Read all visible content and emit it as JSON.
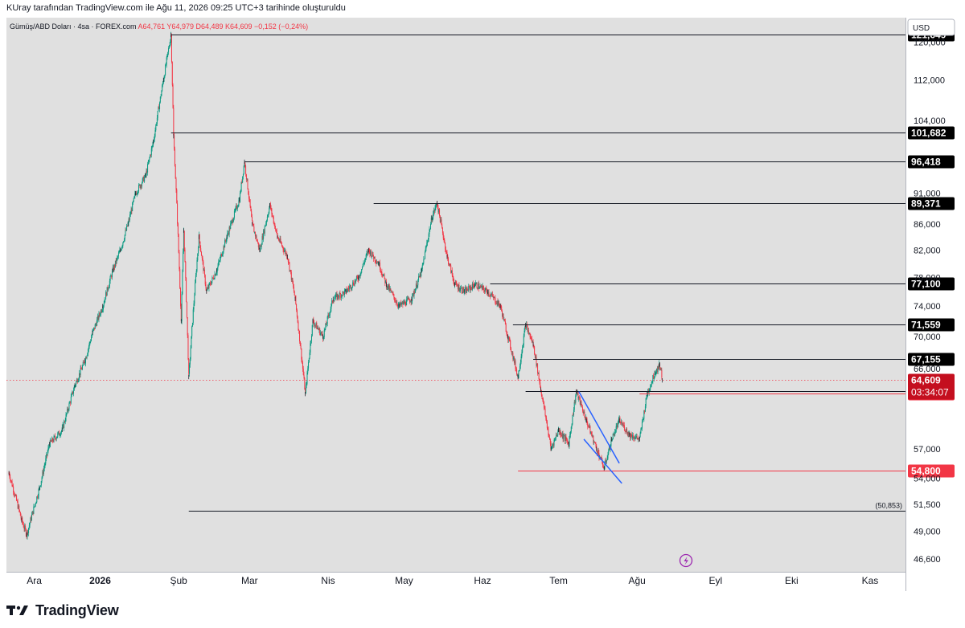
{
  "header": {
    "attribution": "KUray tarafından TradingView.com ile Ağu 11, 2026 09:25 UTC+3 tarihinde oluşturuldu"
  },
  "legend": {
    "symbol": "Gümüş/ABD Doları · 4sa · FOREX.com",
    "open": "A64,761",
    "high": "Y64,979",
    "low": "D64,489",
    "close": "K64,609",
    "change": "−0,152 (−0,24%)"
  },
  "currency_badge": "USD",
  "alert_icon": "lightning-icon",
  "footer": {
    "brand": "TradingView",
    "logo_icon": "tradingview-logo-icon"
  },
  "colors": {
    "background": "#e0e0e0",
    "bullish": "#089981",
    "bearish": "#f23645",
    "level_line": "#131722",
    "support_line": "#f23645",
    "channel_line": "#2962ff",
    "price_label_bg": "#f23645"
  },
  "chart_data": {
    "type": "candlestick",
    "title": "Gümüş/ABD Doları · 4sa · FOREX.com",
    "ylim": [
      45.5,
      125.5
    ],
    "y_scale": "log",
    "grid": false,
    "x_tick_labels": [
      "Ara",
      "2026",
      "Şub",
      "Mar",
      "Nis",
      "May",
      "Haz",
      "Tem",
      "Ağu",
      "Eyl",
      "Eki",
      "Kas"
    ],
    "y_tick_labels": [
      "120,000",
      "112,000",
      "104,000",
      "91,000",
      "86,000",
      "82,000",
      "78,000",
      "74,000",
      "70,000",
      "66,000",
      "57,000",
      "54,000",
      "51,500",
      "49,000",
      "46,600"
    ],
    "y_tick_values": [
      120,
      112,
      104,
      91,
      86,
      82,
      78,
      74,
      70,
      66,
      57,
      54,
      51.5,
      49,
      46.6
    ],
    "price_path": [
      {
        "date": "2025-11-26",
        "price": 54.5
      },
      {
        "date": "2025-12-01",
        "price": 50.0
      },
      {
        "date": "2025-12-03",
        "price": 48.7
      },
      {
        "date": "2025-12-08",
        "price": 53.0
      },
      {
        "date": "2025-12-12",
        "price": 57.5
      },
      {
        "date": "2025-12-17",
        "price": 59.0
      },
      {
        "date": "2025-12-22",
        "price": 64.0
      },
      {
        "date": "2025-12-26",
        "price": 67.0
      },
      {
        "date": "2025-12-29",
        "price": 70.5
      },
      {
        "date": "2026-01-02",
        "price": 74.0
      },
      {
        "date": "2026-01-06",
        "price": 79.0
      },
      {
        "date": "2026-01-09",
        "price": 82.0
      },
      {
        "date": "2026-01-12",
        "price": 86.0
      },
      {
        "date": "2026-01-15",
        "price": 91.0
      },
      {
        "date": "2026-01-19",
        "price": 94.0
      },
      {
        "date": "2026-01-22",
        "price": 100.0
      },
      {
        "date": "2026-01-26",
        "price": 112.0
      },
      {
        "date": "2026-01-29",
        "price": 121.6
      },
      {
        "date": "2026-01-30",
        "price": 101.0
      },
      {
        "date": "2026-02-02",
        "price": 72.0
      },
      {
        "date": "2026-02-03",
        "price": 85.0
      },
      {
        "date": "2026-02-05",
        "price": 65.0
      },
      {
        "date": "2026-02-09",
        "price": 84.0
      },
      {
        "date": "2026-02-12",
        "price": 76.0
      },
      {
        "date": "2026-02-16",
        "price": 79.0
      },
      {
        "date": "2026-02-20",
        "price": 84.0
      },
      {
        "date": "2026-02-25",
        "price": 90.0
      },
      {
        "date": "2026-02-27",
        "price": 96.4
      },
      {
        "date": "2026-03-02",
        "price": 86.0
      },
      {
        "date": "2026-03-05",
        "price": 82.0
      },
      {
        "date": "2026-03-09",
        "price": 89.0
      },
      {
        "date": "2026-03-12",
        "price": 84.0
      },
      {
        "date": "2026-03-16",
        "price": 81.0
      },
      {
        "date": "2026-03-19",
        "price": 75.0
      },
      {
        "date": "2026-03-23",
        "price": 63.0
      },
      {
        "date": "2026-03-26",
        "price": 72.0
      },
      {
        "date": "2026-03-30",
        "price": 70.0
      },
      {
        "date": "2026-04-03",
        "price": 75.0
      },
      {
        "date": "2026-04-08",
        "price": 76.0
      },
      {
        "date": "2026-04-13",
        "price": 78.0
      },
      {
        "date": "2026-04-17",
        "price": 82.0
      },
      {
        "date": "2026-04-21",
        "price": 80.0
      },
      {
        "date": "2026-04-24",
        "price": 77.0
      },
      {
        "date": "2026-04-29",
        "price": 74.0
      },
      {
        "date": "2026-05-04",
        "price": 75.0
      },
      {
        "date": "2026-05-08",
        "price": 79.0
      },
      {
        "date": "2026-05-12",
        "price": 87.0
      },
      {
        "date": "2026-05-14",
        "price": 89.4
      },
      {
        "date": "2026-05-18",
        "price": 81.0
      },
      {
        "date": "2026-05-21",
        "price": 77.0
      },
      {
        "date": "2026-05-25",
        "price": 76.0
      },
      {
        "date": "2026-05-29",
        "price": 77.0
      },
      {
        "date": "2026-06-03",
        "price": 76.0
      },
      {
        "date": "2026-06-08",
        "price": 74.0
      },
      {
        "date": "2026-06-11",
        "price": 70.0
      },
      {
        "date": "2026-06-15",
        "price": 65.0
      },
      {
        "date": "2026-06-18",
        "price": 71.5
      },
      {
        "date": "2026-06-21",
        "price": 69.0
      },
      {
        "date": "2026-06-24",
        "price": 63.5
      },
      {
        "date": "2026-06-28",
        "price": 57.0
      },
      {
        "date": "2026-07-01",
        "price": 59.0
      },
      {
        "date": "2026-07-05",
        "price": 57.5
      },
      {
        "date": "2026-07-08",
        "price": 63.3
      },
      {
        "date": "2026-07-12",
        "price": 60.0
      },
      {
        "date": "2026-07-16",
        "price": 57.0
      },
      {
        "date": "2026-07-19",
        "price": 55.0
      },
      {
        "date": "2026-07-22",
        "price": 58.0
      },
      {
        "date": "2026-07-25",
        "price": 60.0
      },
      {
        "date": "2026-07-29",
        "price": 58.5
      },
      {
        "date": "2026-08-02",
        "price": 58.0
      },
      {
        "date": "2026-08-05",
        "price": 63.0
      },
      {
        "date": "2026-08-08",
        "price": 65.5
      },
      {
        "date": "2026-08-10",
        "price": 66.5
      },
      {
        "date": "2026-08-11",
        "price": 64.6
      }
    ],
    "horizontal_levels": [
      {
        "value": 121.649,
        "label": "121,649",
        "style": "black",
        "start": "2026-01-29"
      },
      {
        "value": 101.682,
        "label": "101,682",
        "style": "black",
        "start": "2026-01-29"
      },
      {
        "value": 96.418,
        "label": "96,418",
        "style": "black",
        "start": "2026-02-27"
      },
      {
        "value": 89.371,
        "label": "89,371",
        "style": "black",
        "start": "2026-04-19"
      },
      {
        "value": 77.1,
        "label": "77,100",
        "style": "black",
        "start": "2026-06-04"
      },
      {
        "value": 71.559,
        "label": "71,559",
        "style": "black",
        "start": "2026-06-13"
      },
      {
        "value": 67.155,
        "label": "67,155",
        "style": "black",
        "start": "2026-06-21"
      },
      {
        "value": 63.337,
        "label": "63,337",
        "style": "dark",
        "start": "2026-06-18"
      },
      {
        "value": 63.021,
        "label": "63,021",
        "style": "red",
        "start": "2026-08-02"
      },
      {
        "value": 54.8,
        "label": "54,800",
        "style": "red",
        "start": "2026-06-15"
      },
      {
        "value": 50.853,
        "label": "(50,853)",
        "style": "inline",
        "start": "2026-02-05"
      }
    ],
    "current_price": {
      "value": 64.609,
      "label": "64,609",
      "countdown": "03:34:07"
    },
    "channel_lines": [
      {
        "from": {
          "date": "2026-07-09",
          "price": 63.3
        },
        "to": {
          "date": "2026-07-25",
          "price": 55.5
        }
      },
      {
        "from": {
          "date": "2026-07-11",
          "price": 58.0
        },
        "to": {
          "date": "2026-07-26",
          "price": 53.5
        }
      }
    ]
  }
}
